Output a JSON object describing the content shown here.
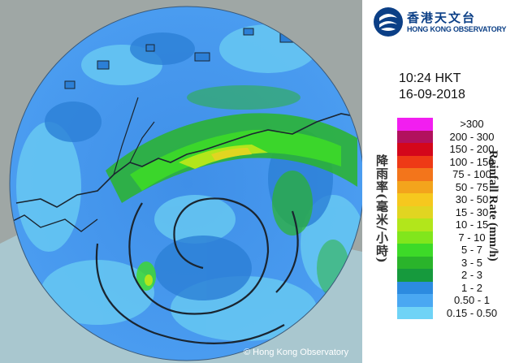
{
  "header": {
    "org_name_cn": "香港天文台",
    "org_name_en": "HONG KONG OBSERVATORY",
    "logo_icon": "hko-logo-icon"
  },
  "timestamp": {
    "time": "10:24 HKT",
    "date": "16-09-2018"
  },
  "legend": {
    "title_en": "Rainfall Rate (mm/h)",
    "title_cn": "降雨率(毫米/小時)",
    "items": [
      {
        "label": ">300",
        "color": "#f21ef0"
      },
      {
        "label": "200 - 300",
        "color": "#b2115e"
      },
      {
        "label": "150 - 200",
        "color": "#d4071b"
      },
      {
        "label": "100 - 150",
        "color": "#ee3a16"
      },
      {
        "label": "75 - 100",
        "color": "#f3751b"
      },
      {
        "label": "50 - 75",
        "color": "#f3a41c"
      },
      {
        "label": "30 - 50",
        "color": "#f6c81e"
      },
      {
        "label": "15 - 30",
        "color": "#e1d521"
      },
      {
        "label": "10 - 15",
        "color": "#b2e61b"
      },
      {
        "label": "7 - 10",
        "color": "#81e61c"
      },
      {
        "label": "5 - 7",
        "color": "#3dda28"
      },
      {
        "label": "3 - 5",
        "color": "#2ab42b"
      },
      {
        "label": "2 - 3",
        "color": "#169a3d"
      },
      {
        "label": "1 - 2",
        "color": "#2c8be0"
      },
      {
        "label": "0.50 - 1",
        "color": "#4aa8f2"
      },
      {
        "label": "0.15 - 0.50",
        "color": "#6fd3f6"
      }
    ]
  },
  "map": {
    "copyright": "© Hong Kong Observatory",
    "background_color": "#9fa7a5",
    "sea_color": "#a9c7cf",
    "land_color": "#8e9b98"
  }
}
